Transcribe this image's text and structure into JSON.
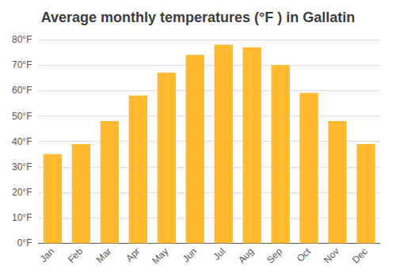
{
  "chart_data": {
    "type": "bar",
    "title": "Average monthly temperatures (°F ) in Gallatin",
    "categories": [
      "Jan",
      "Feb",
      "Mar",
      "Apr",
      "May",
      "Jun",
      "Jul",
      "Aug",
      "Sep",
      "Oct",
      "Nov",
      "Dec"
    ],
    "values": [
      35,
      39,
      48,
      58,
      67,
      74,
      78,
      77,
      70,
      59,
      48,
      39
    ],
    "color": "#FFBA30",
    "ylim": [
      0,
      80
    ],
    "yticks": [
      {
        "value": 0,
        "label": "0°F"
      },
      {
        "value": 10,
        "label": "10°F"
      },
      {
        "value": 20,
        "label": "20°F"
      },
      {
        "value": 30,
        "label": "30°F"
      },
      {
        "value": 40,
        "label": "40°F"
      },
      {
        "value": 50,
        "label": "50°F"
      },
      {
        "value": 60,
        "label": "60°F"
      },
      {
        "value": 70,
        "label": "70°F"
      },
      {
        "value": 80,
        "label": "80°F"
      }
    ],
    "grid": true
  }
}
